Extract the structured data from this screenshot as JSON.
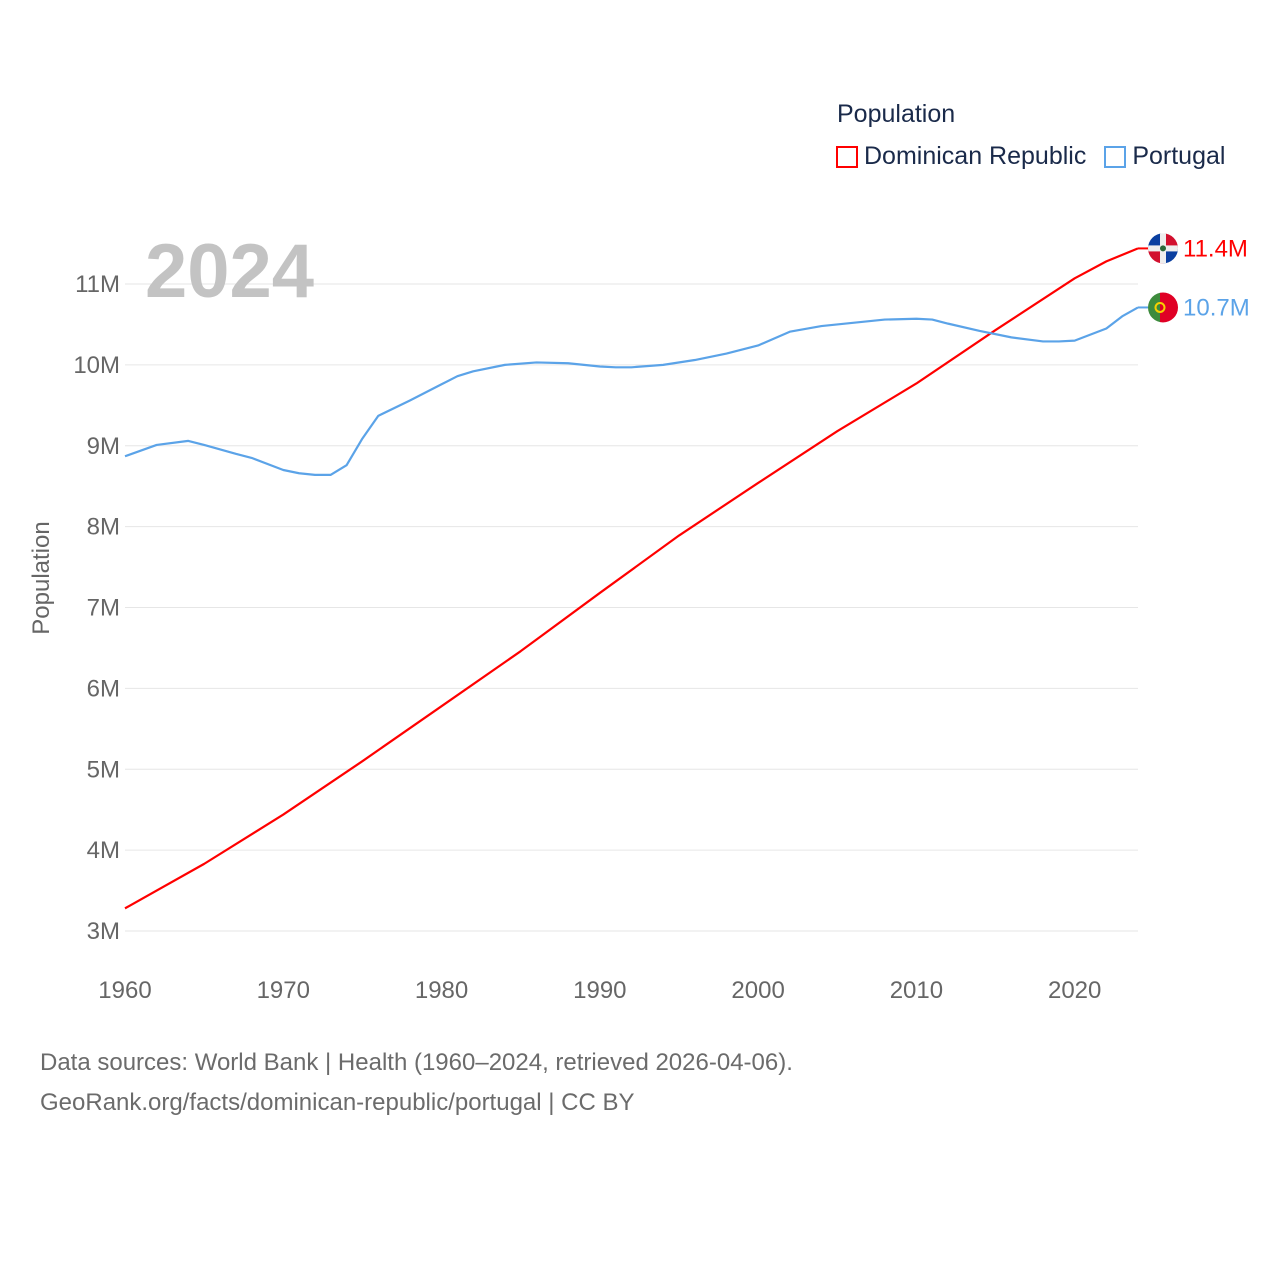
{
  "chart_data": {
    "type": "line",
    "title": "2024",
    "ylabel": "Population",
    "xlabel": "",
    "legend_title": "Population",
    "legend_position": "top-right",
    "xlim": [
      1960,
      2024
    ],
    "ylim": [
      3000000,
      11000000
    ],
    "x_ticks": [
      1960,
      1970,
      1980,
      1990,
      2000,
      2010,
      2020
    ],
    "x_tick_labels": [
      "1960",
      "1970",
      "1980",
      "1990",
      "2000",
      "2010",
      "2020"
    ],
    "y_ticks": [
      3000000,
      4000000,
      5000000,
      6000000,
      7000000,
      8000000,
      9000000,
      10000000,
      11000000
    ],
    "y_tick_labels": [
      "3M",
      "4M",
      "5M",
      "6M",
      "7M",
      "8M",
      "9M",
      "10M",
      "11M"
    ],
    "grid": true,
    "series": [
      {
        "name": "Dominican Republic",
        "color": "#ff0000",
        "end_label": "11.4M",
        "flag": "dominican-republic-flag-icon",
        "x": [
          1960,
          1965,
          1970,
          1975,
          1980,
          1985,
          1990,
          1995,
          2000,
          2005,
          2010,
          2015,
          2020,
          2022,
          2024
        ],
        "values": [
          3280000,
          3830000,
          4440000,
          5100000,
          5780000,
          6460000,
          7180000,
          7890000,
          8540000,
          9180000,
          9770000,
          10430000,
          11070000,
          11280000,
          11440000
        ]
      },
      {
        "name": "Portugal",
        "color": "#5ba3e8",
        "end_label": "10.7M",
        "flag": "portugal-flag-icon",
        "x": [
          1960,
          1962,
          1964,
          1965,
          1967,
          1968,
          1970,
          1971,
          1972,
          1973,
          1974,
          1975,
          1976,
          1978,
          1980,
          1981,
          1982,
          1984,
          1986,
          1988,
          1990,
          1991,
          1992,
          1994,
          1996,
          1998,
          2000,
          2002,
          2004,
          2006,
          2008,
          2010,
          2011,
          2012,
          2014,
          2016,
          2018,
          2019,
          2020,
          2022,
          2023,
          2024
        ],
        "values": [
          8870000,
          9010000,
          9060000,
          9010000,
          8900000,
          8850000,
          8700000,
          8660000,
          8640000,
          8640000,
          8760000,
          9090000,
          9370000,
          9560000,
          9760000,
          9860000,
          9920000,
          10000000,
          10030000,
          10020000,
          9980000,
          9970000,
          9970000,
          10000000,
          10060000,
          10140000,
          10240000,
          10410000,
          10480000,
          10520000,
          10560000,
          10570000,
          10560000,
          10510000,
          10420000,
          10340000,
          10290000,
          10290000,
          10300000,
          10450000,
          10600000,
          10710000
        ]
      }
    ]
  },
  "footer": {
    "line1": "Data sources: World Bank | Health (1960–2024, retrieved 2026-04-06).",
    "line2": "GeoRank.org/facts/dominican-republic/portugal | CC BY"
  }
}
